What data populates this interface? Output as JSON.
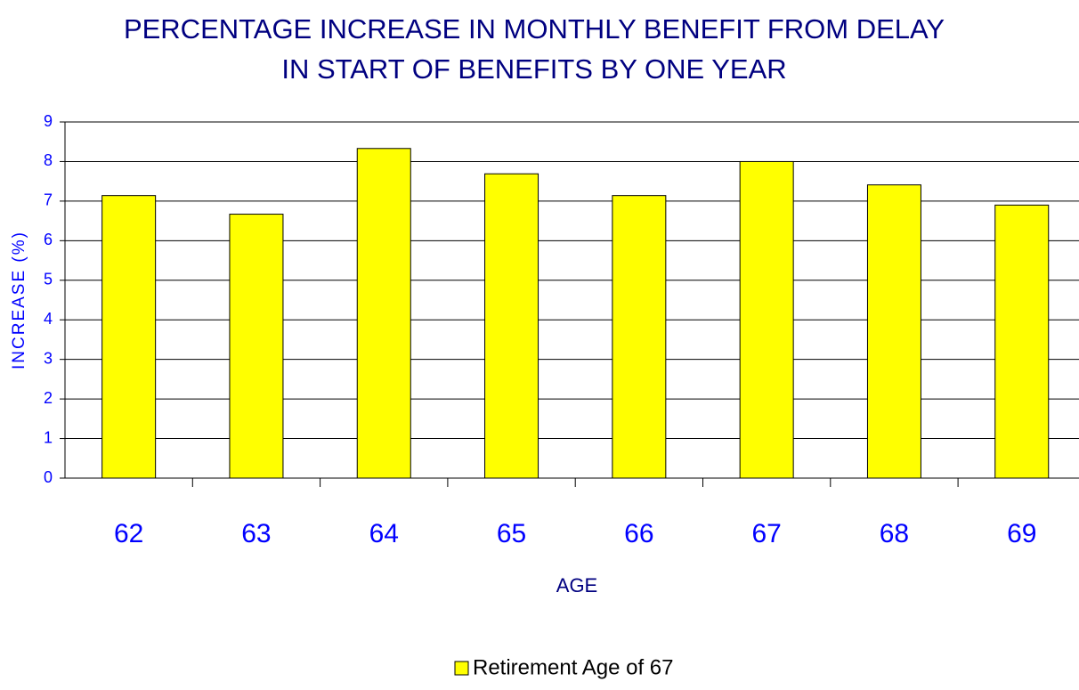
{
  "chart_data": {
    "type": "bar",
    "title": [
      "PERCENTAGE INCREASE IN MONTHLY BENEFIT FROM DELAY",
      "IN START OF BENEFITS BY ONE YEAR"
    ],
    "x_label": "AGE",
    "y_label": "INCREASE (%)",
    "categories": [
      "62",
      "63",
      "64",
      "65",
      "66",
      "67",
      "68",
      "69"
    ],
    "series": [
      {
        "name": "Retirement Age of 67",
        "color": "#ffff00",
        "values": [
          7.14,
          6.67,
          8.33,
          7.69,
          7.14,
          8.0,
          7.41,
          6.9
        ]
      }
    ],
    "ylim": [
      0,
      9
    ],
    "yticks": [
      0,
      1,
      2,
      3,
      4,
      5,
      6,
      7,
      8,
      9
    ],
    "grid": true,
    "legend": "bottom"
  }
}
